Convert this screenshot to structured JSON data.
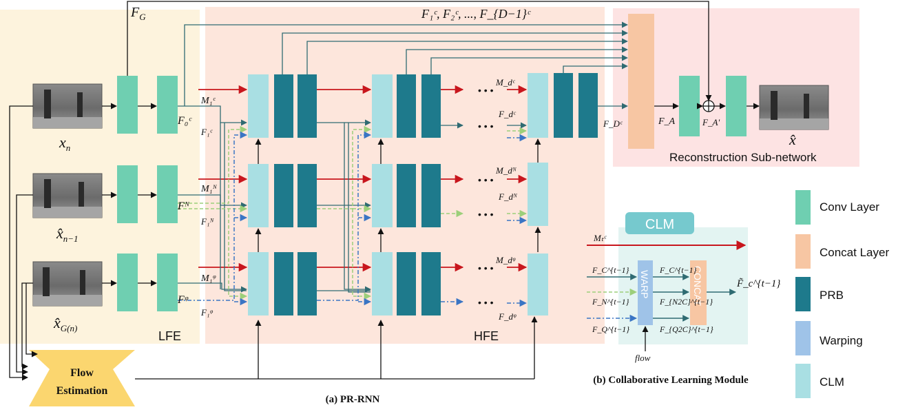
{
  "regions": {
    "lfe": "LFE",
    "hfe": "HFE",
    "reconstruction": "Reconstruction Sub-network"
  },
  "inputs": {
    "xn": "x",
    "xn_sub": "n",
    "xn1": "x̂",
    "xn1_sub": "n−1",
    "xg": "x̂",
    "xg_sub": "G(n)",
    "output": "x̂"
  },
  "signals": {
    "FG": "F",
    "FG_sub": "G",
    "concat_list": "F₁ᶜ, F₂ᶜ, ..., F_{D−1}ᶜ",
    "F0C": "F₀ᶜ",
    "FN": "Fᴺ",
    "FQ": "Fᵠ",
    "M1C": "M₁ᶜ",
    "M1N": "M₁ᴺ",
    "M1Q": "M₁ᵠ",
    "F1C": "F₁ᶜ",
    "F1N": "F₁ᴺ",
    "F1Q": "F₁ᵠ",
    "MdC": "M_dᶜ",
    "MdN": "M_dᴺ",
    "MdQ": "M_dᵠ",
    "FdC": "F_dᶜ",
    "FdN": "F_dᴺ",
    "FdQ": "F_dᵠ",
    "FDC": "F_Dᶜ",
    "FA": "F_A",
    "FAp": "F_A'",
    "dots": "• • •"
  },
  "flow_box": {
    "line1": "Flow",
    "line2": "Estimation"
  },
  "captions": {
    "a": "(a) PR-RNN",
    "b": "(b) Collaborative Learning Module"
  },
  "clm": {
    "title": "CLM",
    "warp": "WARP",
    "concat": "CONCAT",
    "mtc": "Mₜᶜ",
    "fc_in": "F_C^{t−1}",
    "fn_in": "F_N^{t−1}",
    "fq_in": "F_Q^{t−1}",
    "fc_out": "F_C^{t−1}",
    "fn_out": "F_{N2C}^{t−1}",
    "fq_out": "F_{Q2C}^{t−1}",
    "result": "F̃_c^{t−1}",
    "flow": "flow"
  },
  "legend": [
    {
      "label": "Conv Layer",
      "color": "#6fcfb1"
    },
    {
      "label": "Concat Layer",
      "color": "#f7c6a3"
    },
    {
      "label": "PRB",
      "color": "#1e7a8c"
    },
    {
      "label": "Warping",
      "color": "#9fc3e8"
    },
    {
      "label": "CLM",
      "color": "#a9dfe3"
    }
  ],
  "colors": {
    "lfe_bg": "#fdf3dd",
    "hfe_bg": "#fde6dc",
    "recon_bg": "#fde3e3",
    "conv": "#6fcfb1",
    "concat": "#f7c6a3",
    "prb": "#1e7a8c",
    "warping": "#9fc3e8",
    "clm": "#a9dfe3",
    "flow": "#fbd66f",
    "red_arrow": "#c8161d",
    "teal_arrow": "#2f6b72",
    "green_dash": "#9ccf7a",
    "blue_dashdot": "#3a75c4",
    "black": "#111111"
  }
}
